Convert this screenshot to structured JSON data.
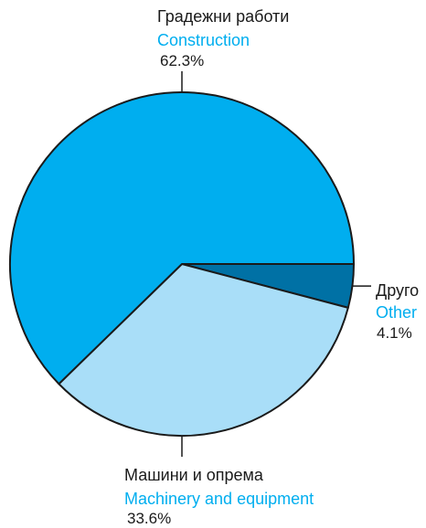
{
  "chart_data": {
    "type": "pie",
    "slices": [
      {
        "label_mk": "Градежни работи",
        "label_en": "Construction",
        "value": 62.3,
        "value_label": "62.3%",
        "color": "#00aeef"
      },
      {
        "label_mk": "Машини и опрема",
        "label_en": "Machinery and equipment",
        "value": 33.6,
        "value_label": "33.6%",
        "color": "#a9def8"
      },
      {
        "label_mk": "Друго",
        "label_en": "Other",
        "value": 4.1,
        "value_label": "4.1%",
        "color": "#0071a5"
      }
    ],
    "label_en_color": "#00aeef",
    "edge_color": "#1a1a1a"
  }
}
